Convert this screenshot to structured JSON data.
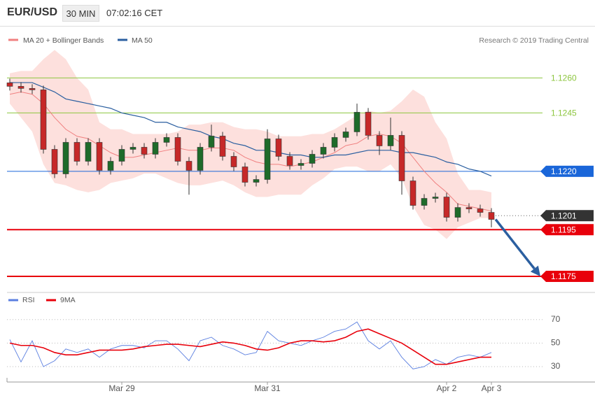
{
  "header": {
    "symbol": "EUR/USD",
    "timeframe": "30 MIN",
    "time": "07:02:16 CET"
  },
  "chart_data": [
    {
      "type": "candlestick",
      "credit": "Research © 2019 Trading Central",
      "categories": [
        null,
        null,
        null,
        null,
        null,
        null,
        null,
        null,
        null,
        null,
        "Mar 29",
        null,
        null,
        null,
        null,
        null,
        null,
        null,
        null,
        null,
        null,
        null,
        null,
        "Mar 31",
        null,
        null,
        null,
        null,
        null,
        null,
        null,
        null,
        null,
        null,
        null,
        null,
        null,
        null,
        null,
        "Apr 2",
        null,
        null,
        null,
        "Apr 3"
      ],
      "open": [
        1.12579,
        1.12564,
        1.12555,
        1.12549,
        1.12294,
        1.12189,
        1.12324,
        1.12243,
        1.12324,
        1.12204,
        1.12243,
        1.12294,
        1.12303,
        1.12273,
        1.12324,
        1.12345,
        1.12243,
        1.12204,
        1.12303,
        1.12351,
        1.12264,
        1.12219,
        1.12153,
        1.12165,
        1.12339,
        1.12264,
        1.12225,
        1.12234,
        1.12273,
        1.12303,
        1.12345,
        1.12369,
        1.12453,
        1.12354,
        1.12309,
        1.12354,
        1.12159,
        1.12054,
        1.12084,
        1.1209,
        1.12003,
        1.12045,
        1.12039,
        1.12024
      ],
      "high": [
        1.12597,
        1.12582,
        1.12573,
        1.12567,
        1.12312,
        1.12342,
        1.12342,
        1.12342,
        1.12342,
        1.12261,
        1.12312,
        1.12321,
        1.12321,
        1.12342,
        1.12363,
        1.12363,
        1.12261,
        1.12321,
        1.124,
        1.12369,
        1.12282,
        1.12237,
        1.12183,
        1.1238,
        1.12357,
        1.12282,
        1.12252,
        1.12291,
        1.12321,
        1.12363,
        1.12387,
        1.1249,
        1.12471,
        1.12372,
        1.1243,
        1.12372,
        1.12177,
        1.12102,
        1.12108,
        1.12108,
        1.12063,
        1.12063,
        1.12057,
        1.12042
      ],
      "low": [
        1.12546,
        1.12537,
        1.12531,
        1.12276,
        1.12171,
        1.12171,
        1.12225,
        1.12225,
        1.12186,
        1.12186,
        1.12225,
        1.12276,
        1.12255,
        1.12255,
        1.12306,
        1.12225,
        1.121,
        1.12186,
        1.12285,
        1.12246,
        1.12201,
        1.12135,
        1.12135,
        1.12147,
        1.12246,
        1.12207,
        1.12207,
        1.12216,
        1.12255,
        1.12285,
        1.12327,
        1.12351,
        1.12336,
        1.1227,
        1.12291,
        1.121,
        1.12036,
        1.12036,
        1.12066,
        1.11985,
        1.11985,
        1.12021,
        1.12006,
        1.1196
      ],
      "close": [
        1.12564,
        1.12555,
        1.12549,
        1.12294,
        1.12189,
        1.12324,
        1.12243,
        1.12324,
        1.12204,
        1.12243,
        1.12294,
        1.12303,
        1.12273,
        1.12324,
        1.12345,
        1.12243,
        1.12204,
        1.12303,
        1.12351,
        1.12264,
        1.12219,
        1.12153,
        1.12165,
        1.12339,
        1.12264,
        1.12225,
        1.12234,
        1.12273,
        1.12303,
        1.12345,
        1.12369,
        1.12453,
        1.12354,
        1.12309,
        1.12354,
        1.12159,
        1.12054,
        1.12084,
        1.1209,
        1.12003,
        1.12045,
        1.12039,
        1.12024,
        1.11994
      ],
      "up_color": "#1e6b2a",
      "down_color": "#c62828",
      "series": [
        {
          "name": "MA 20 + Bollinger Bands",
          "color": "#f08080",
          "values": [
            1.1253,
            1.1254,
            1.1253,
            1.1249,
            1.1243,
            1.1238,
            1.1235,
            1.1234,
            1.1231,
            1.1228,
            1.1226,
            1.1226,
            1.1227,
            1.1228,
            1.1229,
            1.123,
            1.1229,
            1.1229,
            1.123,
            1.123,
            1.1229,
            1.1226,
            1.1224,
            1.1223,
            1.1223,
            1.1222,
            1.1223,
            1.1224,
            1.1226,
            1.1228,
            1.1231,
            1.1232,
            1.1235,
            1.1236,
            1.1235,
            1.1232,
            1.1226,
            1.122,
            1.1215,
            1.1211,
            1.1206,
            1.1205,
            1.1204,
            1.1203
          ]
        },
        {
          "name": "MA 50",
          "color": "#2b5fa0",
          "values": [
            1.1258,
            1.1258,
            1.1258,
            1.1256,
            1.1254,
            1.1251,
            1.125,
            1.1249,
            1.1248,
            1.1247,
            1.1245,
            1.1244,
            1.1243,
            1.1241,
            1.1241,
            1.1239,
            1.1238,
            1.1237,
            1.1235,
            1.1234,
            1.1232,
            1.1231,
            1.1229,
            1.1229,
            1.1228,
            1.1227,
            1.1227,
            1.1226,
            1.1226,
            1.1227,
            1.1227,
            1.1228,
            1.1229,
            1.1229,
            1.1229,
            1.1228,
            1.1228,
            1.1227,
            1.1226,
            1.1224,
            1.1223,
            1.1221,
            1.122,
            1.1218
          ]
        }
      ],
      "band_color": "#fde0dd",
      "upper": [
        1.1262,
        1.1263,
        1.1263,
        1.1268,
        1.1272,
        1.1268,
        1.126,
        1.1255,
        1.1241,
        1.1238,
        1.1238,
        1.1236,
        1.1236,
        1.1236,
        1.1236,
        1.1237,
        1.124,
        1.124,
        1.1241,
        1.1241,
        1.1239,
        1.1238,
        1.1238,
        1.1237,
        1.1235,
        1.1235,
        1.1235,
        1.1236,
        1.1236,
        1.1238,
        1.1241,
        1.1244,
        1.1246,
        1.1245,
        1.1246,
        1.125,
        1.1255,
        1.1252,
        1.1241,
        1.1234,
        1.1219,
        1.1212,
        1.1212,
        1.1211
      ],
      "lower": [
        1.1249,
        1.1243,
        1.1237,
        1.1223,
        1.1215,
        1.1214,
        1.1212,
        1.1211,
        1.1212,
        1.1215,
        1.1216,
        1.1217,
        1.1219,
        1.1219,
        1.1217,
        1.1215,
        1.1214,
        1.1214,
        1.1215,
        1.1216,
        1.1214,
        1.1211,
        1.1209,
        1.1209,
        1.121,
        1.121,
        1.121,
        1.1214,
        1.1217,
        1.1221,
        1.1222,
        1.1222,
        1.122,
        1.122,
        1.1223,
        1.1217,
        1.1205,
        1.1197,
        1.1195,
        1.1191,
        1.1196,
        1.1198,
        1.12,
        1.12
      ],
      "ylim": [
        1.1169,
        1.1273
      ],
      "levels": [
        {
          "value": 1.126,
          "label": "1.1260",
          "color": "#8dc63f",
          "box": false,
          "line": "solid"
        },
        {
          "value": 1.1245,
          "label": "1.1245",
          "color": "#8dc63f",
          "box": false,
          "line": "solid"
        },
        {
          "value": 1.122,
          "label": "1.1220",
          "color": "#1a66d9",
          "box": true,
          "line": "solid"
        },
        {
          "value": 1.1201,
          "label": "1.1201",
          "color": "#333333",
          "box": true,
          "line": "dotted"
        },
        {
          "value": 1.1195,
          "label": "1.1195",
          "color": "#e8000b",
          "box": true,
          "line": "solid"
        },
        {
          "value": 1.1175,
          "label": "1.1175",
          "color": "#e8000b",
          "box": true,
          "line": "solid"
        }
      ],
      "forecast_color": "#2b5fa0"
    },
    {
      "type": "line",
      "series": [
        {
          "name": "RSI",
          "color": "#5b7fe0",
          "values": [
            53,
            34,
            52,
            30,
            35,
            45,
            42,
            45,
            38,
            45,
            48,
            48,
            46,
            52,
            52,
            45,
            35,
            52,
            55,
            48,
            45,
            40,
            42,
            60,
            52,
            50,
            48,
            52,
            55,
            60,
            62,
            68,
            52,
            45,
            52,
            38,
            28,
            30,
            36,
            32,
            38,
            40,
            38,
            42
          ]
        },
        {
          "name": "9MA",
          "color": "#e8000b",
          "values": [
            50,
            48,
            48,
            46,
            42,
            40,
            40,
            42,
            44,
            44,
            44,
            45,
            47,
            48,
            49,
            49,
            48,
            47,
            49,
            51,
            50,
            48,
            45,
            44,
            46,
            50,
            52,
            52,
            51,
            52,
            55,
            60,
            62,
            58,
            54,
            50,
            44,
            38,
            32,
            32,
            34,
            36,
            38,
            38
          ]
        }
      ],
      "ylim": [
        17.5,
        80
      ],
      "yticks": [
        30,
        50,
        70
      ],
      "grid": true
    }
  ]
}
